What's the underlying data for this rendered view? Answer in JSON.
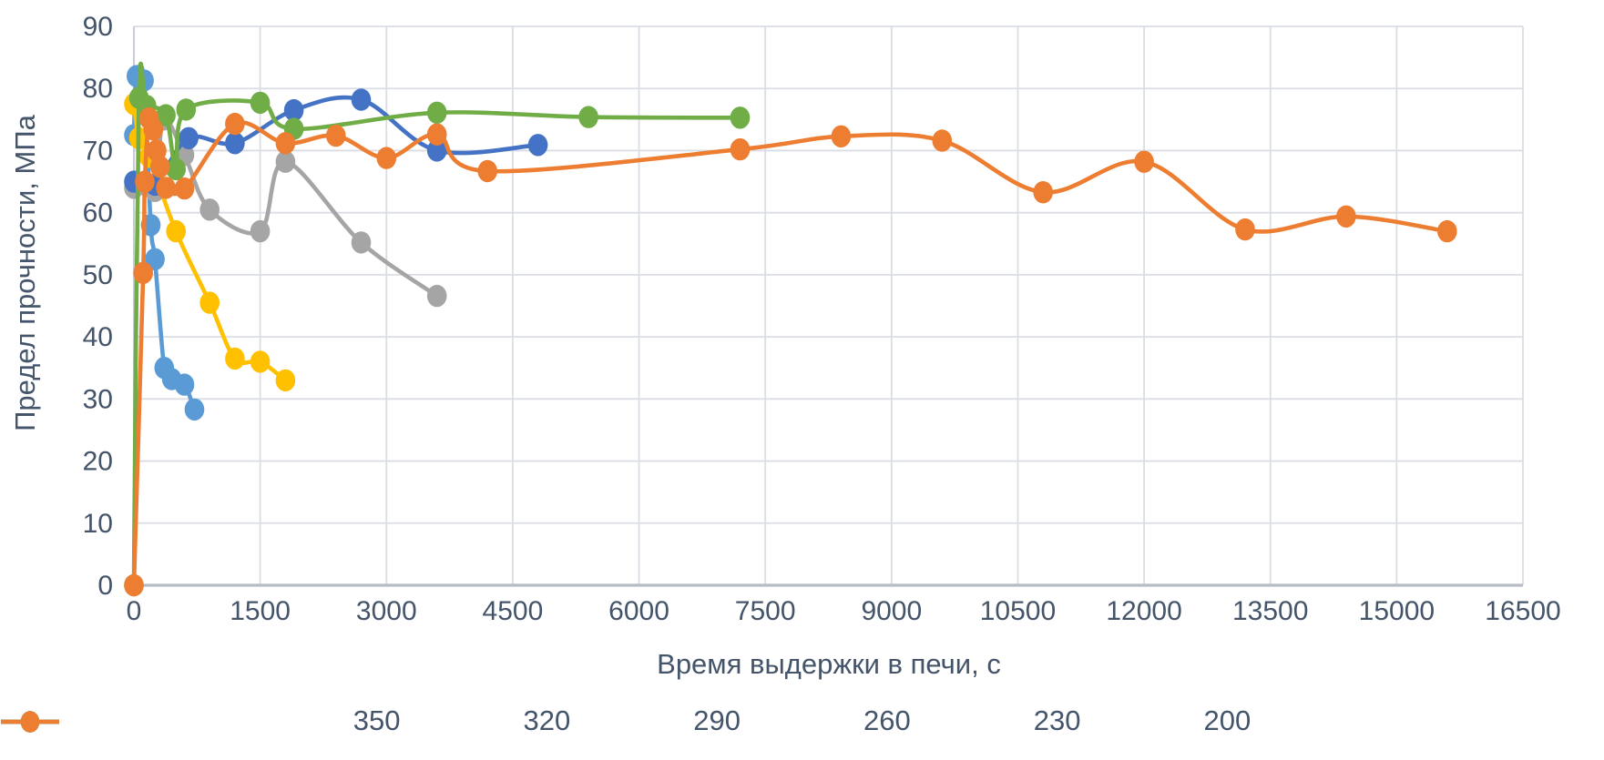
{
  "page": {
    "background": "#ffffff",
    "text_color": "#44546A",
    "gridline_color": "#DADDE4",
    "axis_line_color": "#B7BCC7"
  },
  "chart_data": {
    "type": "line",
    "title": "",
    "xlabel": "Время выдержки в печи, с",
    "ylabel": "Предел прочности, МПа",
    "xlim": [
      0,
      16500
    ],
    "ylim": [
      0,
      90
    ],
    "x_ticks": [
      0,
      1500,
      3000,
      4500,
      6000,
      7500,
      9000,
      10500,
      12000,
      13500,
      15000,
      16500
    ],
    "y_ticks": [
      0,
      10,
      20,
      30,
      40,
      50,
      60,
      70,
      80,
      90
    ],
    "grid": true,
    "legend_position": "bottom",
    "line_style": "smooth",
    "marker": "circle",
    "series": [
      {
        "name": "350",
        "color": "#5B9BD5",
        "points": [
          [
            0,
            72.5
          ],
          [
            30,
            82
          ],
          [
            120,
            81.3
          ],
          [
            200,
            58
          ],
          [
            250,
            52.5
          ],
          [
            360,
            35
          ],
          [
            450,
            33.2
          ],
          [
            600,
            32.3
          ],
          [
            720,
            28.3
          ]
        ]
      },
      {
        "name": "320",
        "color": "#FFC000",
        "points": [
          [
            0,
            77.5
          ],
          [
            60,
            72
          ],
          [
            180,
            69
          ],
          [
            500,
            57
          ],
          [
            900,
            45.5
          ],
          [
            1200,
            36.5
          ],
          [
            1500,
            36
          ],
          [
            1800,
            33
          ]
        ]
      },
      {
        "name": "290",
        "color": "#A5A5A5",
        "points": [
          [
            0,
            64
          ],
          [
            250,
            63.5
          ],
          [
            350,
            75
          ],
          [
            600,
            69.3
          ],
          [
            900,
            60.5
          ],
          [
            1500,
            57
          ],
          [
            1800,
            68.2
          ],
          [
            2700,
            55.2
          ],
          [
            3600,
            46.6
          ]
        ]
      },
      {
        "name": "260",
        "color": "#4472C4",
        "points": [
          [
            0,
            65
          ],
          [
            250,
            64.5
          ],
          [
            650,
            72
          ],
          [
            1200,
            71.2
          ],
          [
            1900,
            76.5
          ],
          [
            2700,
            78.2
          ],
          [
            3600,
            70
          ],
          [
            4800,
            70.9
          ]
        ]
      },
      {
        "name": "230",
        "color": "#70AD47",
        "points": [
          [
            0,
            0
          ],
          [
            60,
            78.5
          ],
          [
            150,
            77.2
          ],
          [
            380,
            75.7
          ],
          [
            500,
            67
          ],
          [
            620,
            76.6
          ],
          [
            1500,
            77.7
          ],
          [
            1900,
            73.5
          ],
          [
            3600,
            76.1
          ],
          [
            5400,
            75.4
          ],
          [
            7200,
            75.3
          ]
        ]
      },
      {
        "name": "200",
        "color": "#ED7D31",
        "points": [
          [
            0,
            0
          ],
          [
            110,
            50.3
          ],
          [
            130,
            65
          ],
          [
            180,
            75.2
          ],
          [
            230,
            73.4
          ],
          [
            270,
            70
          ],
          [
            310,
            67.4
          ],
          [
            380,
            64
          ],
          [
            600,
            63.9
          ],
          [
            1200,
            74.3
          ],
          [
            1800,
            71.2
          ],
          [
            2400,
            72.4
          ],
          [
            3000,
            68.8
          ],
          [
            3600,
            72.6
          ],
          [
            4200,
            66.7
          ],
          [
            7200,
            70.2
          ],
          [
            8400,
            72.3
          ],
          [
            9600,
            71.6
          ],
          [
            10800,
            63.3
          ],
          [
            12000,
            68.2
          ],
          [
            13200,
            57.3
          ],
          [
            14400,
            59.4
          ],
          [
            15600,
            57
          ]
        ]
      }
    ]
  }
}
